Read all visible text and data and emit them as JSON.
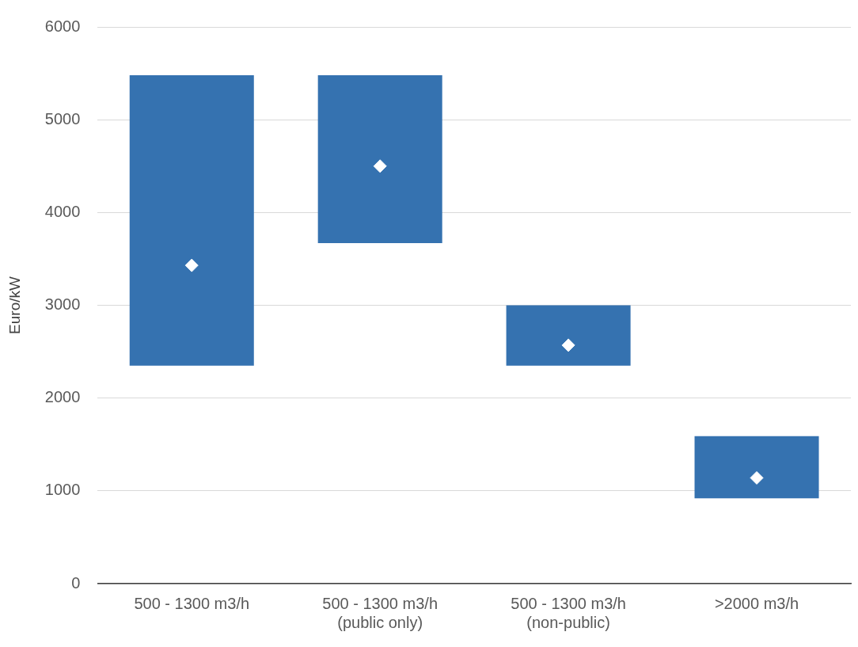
{
  "chart_data": {
    "type": "bar",
    "ylabel": "Euro/kW",
    "categories": [
      "500 - 1300 m3/h",
      "500 - 1300 m3/h\n(public only)",
      "500 - 1300 m3/h\n(non-public)",
      ">2000 m3/h"
    ],
    "series": [
      {
        "color": "#3572b0",
        "base": [
          2350,
          3670,
          2350,
          920
        ],
        "values": [
          3130,
          1810,
          650,
          670
        ]
      },
      {
        "type": "scatter",
        "color": "#ffffff",
        "marker": "diamond",
        "x": [
          "500 - 1300 m3/h",
          "500 - 1300 m3/h\n(public only)",
          "500 - 1300 m3/h\n(non-public)",
          ">2000 m3/h"
        ],
        "values": [
          3430,
          4500,
          2570,
          1140
        ]
      }
    ],
    "ylim": [
      0,
      6000
    ],
    "yticks": [
      0,
      1000,
      2000,
      3000,
      4000,
      5000,
      6000
    ],
    "grid": "y",
    "legend": false
  }
}
